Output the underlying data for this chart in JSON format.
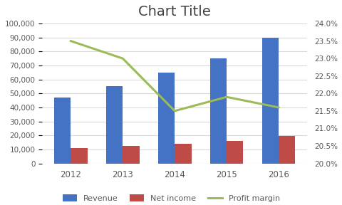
{
  "title": "Chart Title",
  "years": [
    2012,
    2013,
    2014,
    2015,
    2016
  ],
  "revenue": [
    47000,
    55000,
    65000,
    75000,
    90000
  ],
  "net_income": [
    11000,
    12500,
    14000,
    16000,
    19500
  ],
  "profit_margin": [
    23.5,
    23.0,
    21.5,
    21.9,
    21.6
  ],
  "bar_color_revenue": "#4472C4",
  "bar_color_net_income": "#BE4B48",
  "line_color_profit": "#9BBB59",
  "ylim_left": [
    0,
    100000
  ],
  "ylim_right": [
    20.0,
    24.0
  ],
  "yticks_left": [
    0,
    10000,
    20000,
    30000,
    40000,
    50000,
    60000,
    70000,
    80000,
    90000,
    100000
  ],
  "yticks_right": [
    20.0,
    20.5,
    21.0,
    21.5,
    22.0,
    22.5,
    23.0,
    23.5,
    24.0
  ],
  "legend_labels": [
    "Revenue",
    "Net income",
    "Profit margin"
  ],
  "background_color": "#FFFFFF",
  "title_fontsize": 14,
  "title_color": "#404040",
  "grid_color": "#D9D9D9",
  "tick_label_color": "#595959",
  "bar_width": 0.32
}
